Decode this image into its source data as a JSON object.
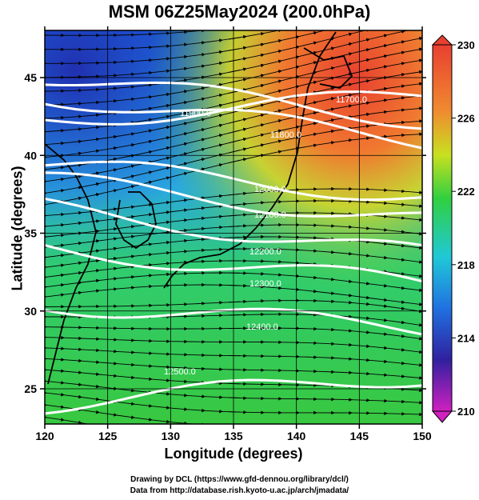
{
  "title": "MSM 06Z25May2024 (200.0hPa)",
  "axes": {
    "xlabel": "Longitude (degrees)",
    "ylabel": "Latitude (degrees)",
    "x_ticks": [
      "120",
      "125",
      "130",
      "135",
      "140",
      "145",
      "150"
    ],
    "y_ticks": [
      "25",
      "30",
      "35",
      "40",
      "45"
    ]
  },
  "colorbar": {
    "labels": [
      "230",
      "226",
      "222",
      "218",
      "214",
      "210"
    ],
    "colors": [
      "#e8503a",
      "#f0a030",
      "#b8e020",
      "#30d040",
      "#20c8d0",
      "#2060e0",
      "#3020a0",
      "#c020c0"
    ]
  },
  "contours": [
    {
      "label": "11700.0"
    },
    {
      "label": "11800.0"
    },
    {
      "label": "11900.0"
    },
    {
      "label": "12000.0"
    },
    {
      "label": "12100.0"
    },
    {
      "label": "12200.0"
    },
    {
      "label": "12300.0"
    },
    {
      "label": "12400.0"
    },
    {
      "label": "12500.0"
    }
  ],
  "credits": {
    "line1": "Drawing by DCL (https://www.gfd-dennou.org/library/dcl/)",
    "line2": "Data from http://database.rish.kyoto-u.ac.jp/arch/jmadata/"
  }
}
